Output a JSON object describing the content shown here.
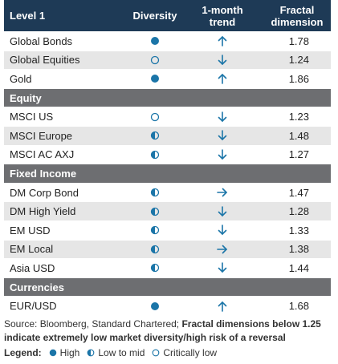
{
  "header": {
    "columns": [
      "Level 1",
      "Diversity",
      "1-month trend",
      "Fractal dimension"
    ]
  },
  "groups": [
    {
      "rows": [
        {
          "name": "Global Bonds",
          "diversity": "High",
          "trend": "up",
          "fractal_dimension": 1.78
        },
        {
          "name": "Global Equities",
          "diversity": "Critically low",
          "trend": "down",
          "fractal_dimension": 1.24
        },
        {
          "name": "Gold",
          "diversity": "High",
          "trend": "up",
          "fractal_dimension": 1.86
        }
      ]
    },
    {
      "title": "Equity",
      "rows": [
        {
          "name": "MSCI US",
          "diversity": "Critically low",
          "trend": "down",
          "fractal_dimension": 1.23
        },
        {
          "name": "MSCI Europe",
          "diversity": "Low to mid",
          "trend": "down",
          "fractal_dimension": 1.48
        },
        {
          "name": "MSCI AC AXJ",
          "diversity": "Low to mid",
          "trend": "down",
          "fractal_dimension": 1.27
        }
      ]
    },
    {
      "title": "Fixed Income",
      "rows": [
        {
          "name": "DM Corp Bond",
          "diversity": "Low to mid",
          "trend": "right",
          "fractal_dimension": 1.47
        },
        {
          "name": "DM High Yield",
          "diversity": "Low to mid",
          "trend": "down",
          "fractal_dimension": 1.28
        },
        {
          "name": "EM USD",
          "diversity": "Low to mid",
          "trend": "down",
          "fractal_dimension": 1.33
        },
        {
          "name": "EM Local",
          "diversity": "Low to mid",
          "trend": "right",
          "fractal_dimension": 1.38
        },
        {
          "name": "Asia USD",
          "diversity": "Low to mid",
          "trend": "down",
          "fractal_dimension": 1.44
        }
      ]
    },
    {
      "title": "Currencies",
      "rows": [
        {
          "name": "EUR/USD",
          "diversity": "High",
          "trend": "up",
          "fractal_dimension": 1.68
        }
      ]
    }
  ],
  "footer": {
    "source": "Source: Bloomberg, Standard Chartered; ",
    "note": "Fractal dimensions below 1.25 indicate extremely low market diversity/high risk of a reversal"
  },
  "legend": {
    "title": "Legend:",
    "items": [
      "High",
      "Low to mid",
      "Critically low"
    ]
  }
}
